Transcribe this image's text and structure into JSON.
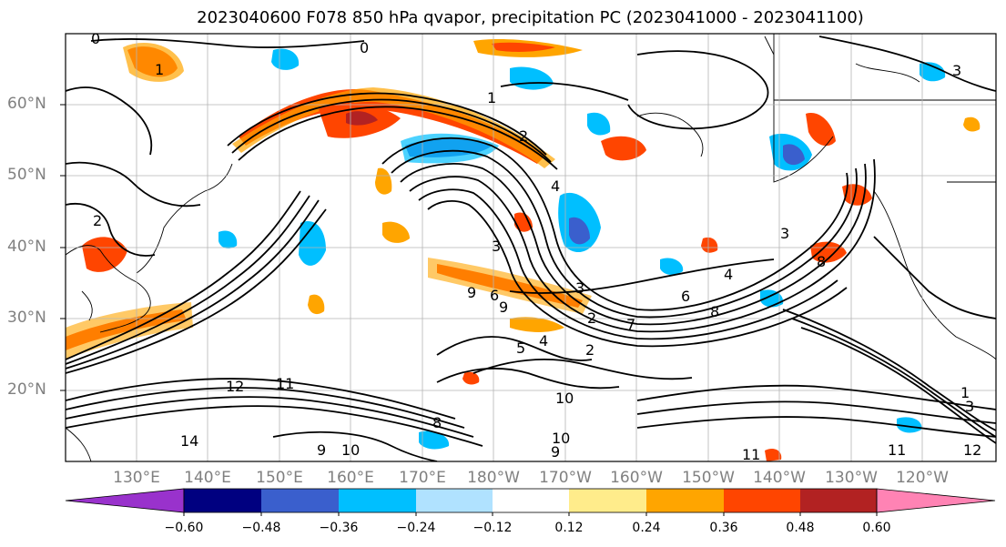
{
  "title": "2023040600 F078 850 hPa qvapor, precipitation PC (2023041000 - 2023041100)",
  "map": {
    "lat_labels": [
      "60°N",
      "50°N",
      "40°N",
      "30°N",
      "20°N"
    ],
    "lon_labels": [
      "130°E",
      "140°E",
      "150°E",
      "160°E",
      "170°E",
      "180°W",
      "170°W",
      "160°W",
      "150°W",
      "140°W",
      "130°W",
      "120°W"
    ],
    "contour_labels": [
      "0",
      "0",
      "1",
      "2",
      "2",
      "3",
      "3",
      "4",
      "1",
      "2",
      "3",
      "4",
      "3",
      "6",
      "8",
      "7",
      "5",
      "4",
      "2",
      "6",
      "8",
      "9",
      "9",
      "11",
      "12",
      "10",
      "9",
      "10",
      "14",
      "11",
      "12",
      "1",
      "3",
      "9",
      "10",
      "11",
      "8"
    ]
  },
  "colorbar": {
    "ticks": [
      "−0.60",
      "−0.48",
      "−0.36",
      "−0.24",
      "−0.12",
      "0.12",
      "0.24",
      "0.36",
      "0.48",
      "0.60"
    ],
    "colors": [
      "#9932cc",
      "#000080",
      "#3a5fcd",
      "#00bfff",
      "#b0e2ff",
      "#ffffff",
      "#ffec8b",
      "#ffa500",
      "#ff4500",
      "#b22222",
      "#ff83b4"
    ]
  }
}
